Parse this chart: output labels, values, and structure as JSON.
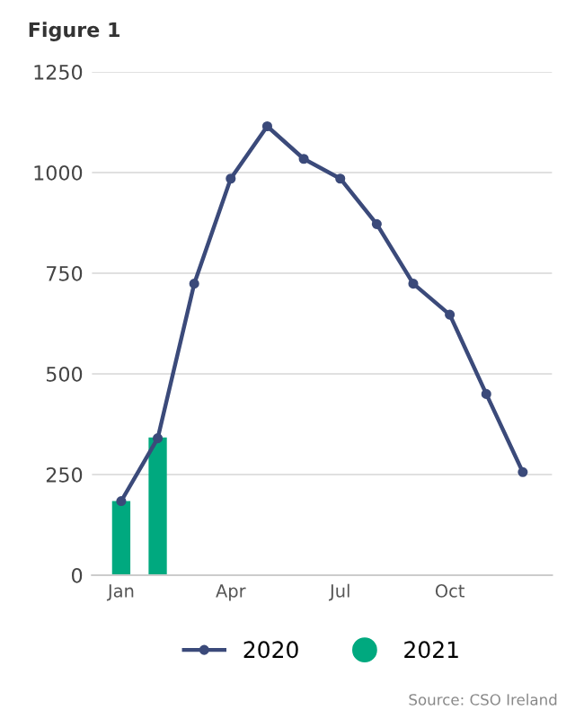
{
  "chart_data": {
    "type": "line",
    "title": "Figure 1",
    "categories": [
      "Jan",
      null,
      null,
      "Apr",
      null,
      null,
      "Jul",
      null,
      null,
      "Oct",
      null,
      null
    ],
    "series": [
      {
        "name": "2020",
        "color": "#3b4a7a",
        "values": [
          184,
          340,
          724,
          985,
          1115,
          1034,
          985,
          872,
          724,
          647,
          450,
          256
        ]
      },
      {
        "name": "2021",
        "type": "bar",
        "color": "#00a97f",
        "values": [
          184,
          342,
          null,
          null,
          null,
          null,
          null,
          null,
          null,
          null,
          null,
          null
        ]
      }
    ],
    "ylim": [
      0,
      1250
    ],
    "yticks": [
      0,
      250,
      500,
      750,
      1000,
      1250
    ],
    "grid": "y",
    "legend": "bottom",
    "marker": "circle",
    "annotations": [
      "Source: CSO Ireland"
    ]
  }
}
